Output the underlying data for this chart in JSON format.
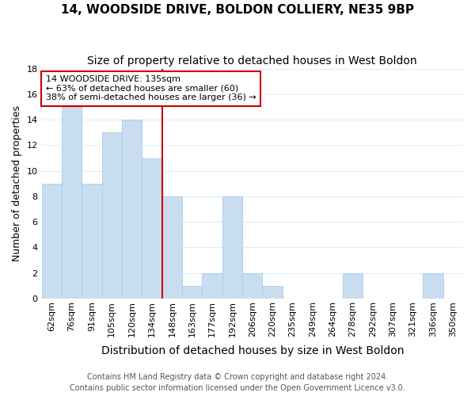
{
  "title": "14, WOODSIDE DRIVE, BOLDON COLLIERY, NE35 9BP",
  "subtitle": "Size of property relative to detached houses in West Boldon",
  "xlabel": "Distribution of detached houses by size in West Boldon",
  "ylabel": "Number of detached properties",
  "bar_labels": [
    "62sqm",
    "76sqm",
    "91sqm",
    "105sqm",
    "120sqm",
    "134sqm",
    "148sqm",
    "163sqm",
    "177sqm",
    "192sqm",
    "206sqm",
    "220sqm",
    "235sqm",
    "249sqm",
    "264sqm",
    "278sqm",
    "292sqm",
    "307sqm",
    "321sqm",
    "336sqm",
    "350sqm"
  ],
  "bar_heights": [
    9,
    15,
    9,
    13,
    14,
    11,
    8,
    1,
    2,
    8,
    2,
    1,
    0,
    0,
    0,
    2,
    0,
    0,
    0,
    2,
    0
  ],
  "bar_color": "#c8ddf0",
  "bar_edge_color": "#aaccee",
  "reference_line_color": "#cc0000",
  "annotation_line1": "14 WOODSIDE DRIVE: 135sqm",
  "annotation_line2": "← 63% of detached houses are smaller (60)",
  "annotation_line3": "38% of semi-detached houses are larger (36) →",
  "annotation_box_edge_color": "#cc0000",
  "annotation_box_face_color": "#ffffff",
  "ylim": [
    0,
    18
  ],
  "yticks": [
    0,
    2,
    4,
    6,
    8,
    10,
    12,
    14,
    16,
    18
  ],
  "footer_line1": "Contains HM Land Registry data © Crown copyright and database right 2024.",
  "footer_line2": "Contains public sector information licensed under the Open Government Licence v3.0.",
  "background_color": "#ffffff",
  "grid_color": "#ddeeff",
  "title_fontsize": 11,
  "subtitle_fontsize": 10,
  "xlabel_fontsize": 10,
  "ylabel_fontsize": 9,
  "tick_fontsize": 8,
  "annotation_fontsize": 8,
  "footer_fontsize": 7
}
